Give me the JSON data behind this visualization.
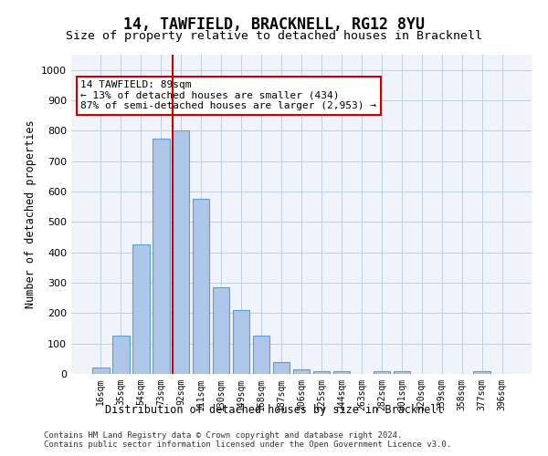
{
  "title": "14, TAWFIELD, BRACKNELL, RG12 8YU",
  "subtitle": "Size of property relative to detached houses in Bracknell",
  "xlabel": "Distribution of detached houses by size in Bracknell",
  "ylabel": "Number of detached properties",
  "categories": [
    "16sqm",
    "35sqm",
    "54sqm",
    "73sqm",
    "92sqm",
    "111sqm",
    "130sqm",
    "149sqm",
    "168sqm",
    "187sqm",
    "206sqm",
    "225sqm",
    "244sqm",
    "263sqm",
    "282sqm",
    "301sqm",
    "320sqm",
    "339sqm",
    "358sqm",
    "377sqm",
    "396sqm"
  ],
  "values": [
    20,
    125,
    425,
    775,
    800,
    575,
    285,
    210,
    125,
    40,
    15,
    10,
    10,
    0,
    10,
    10,
    0,
    0,
    0,
    10,
    0
  ],
  "bar_color": "#aec6e8",
  "bar_edgecolor": "#5a9fd4",
  "vline_x": 4,
  "vline_color": "#cc0000",
  "annotation_text": "14 TAWFIELD: 89sqm\n← 13% of detached houses are smaller (434)\n87% of semi-detached houses are larger (2,953) →",
  "annotation_box_color": "#ffffff",
  "annotation_box_edgecolor": "#cc0000",
  "ylim": [
    0,
    1050
  ],
  "yticks": [
    0,
    100,
    200,
    300,
    400,
    500,
    600,
    700,
    800,
    900,
    1000
  ],
  "grid_color": "#c0cfe0",
  "background_color": "#f0f4fa",
  "footer_line1": "Contains HM Land Registry data © Crown copyright and database right 2024.",
  "footer_line2": "Contains public sector information licensed under the Open Government Licence v3.0."
}
